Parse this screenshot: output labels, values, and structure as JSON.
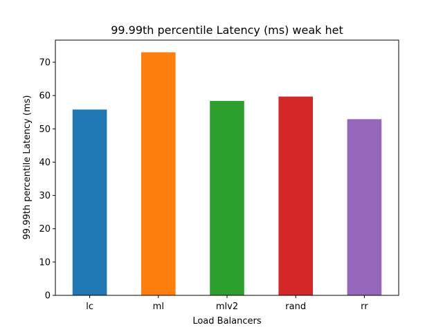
{
  "chart_data": {
    "type": "bar",
    "title": "99.99th percentile Latency (ms) weak het",
    "xlabel": "Load Balancers",
    "ylabel": "99.99th percentile Latency (ms)",
    "categories": [
      "lc",
      "ml",
      "mlv2",
      "rand",
      "rr"
    ],
    "values": [
      55.8,
      73.0,
      58.4,
      59.7,
      52.9
    ],
    "colors": [
      "#1f77b4",
      "#ff7f0e",
      "#2ca02c",
      "#d62728",
      "#9467bd"
    ],
    "ylim": [
      0,
      76.65
    ],
    "yticks": [
      0,
      10,
      20,
      30,
      40,
      50,
      60,
      70
    ],
    "grid": false,
    "legend": false
  }
}
